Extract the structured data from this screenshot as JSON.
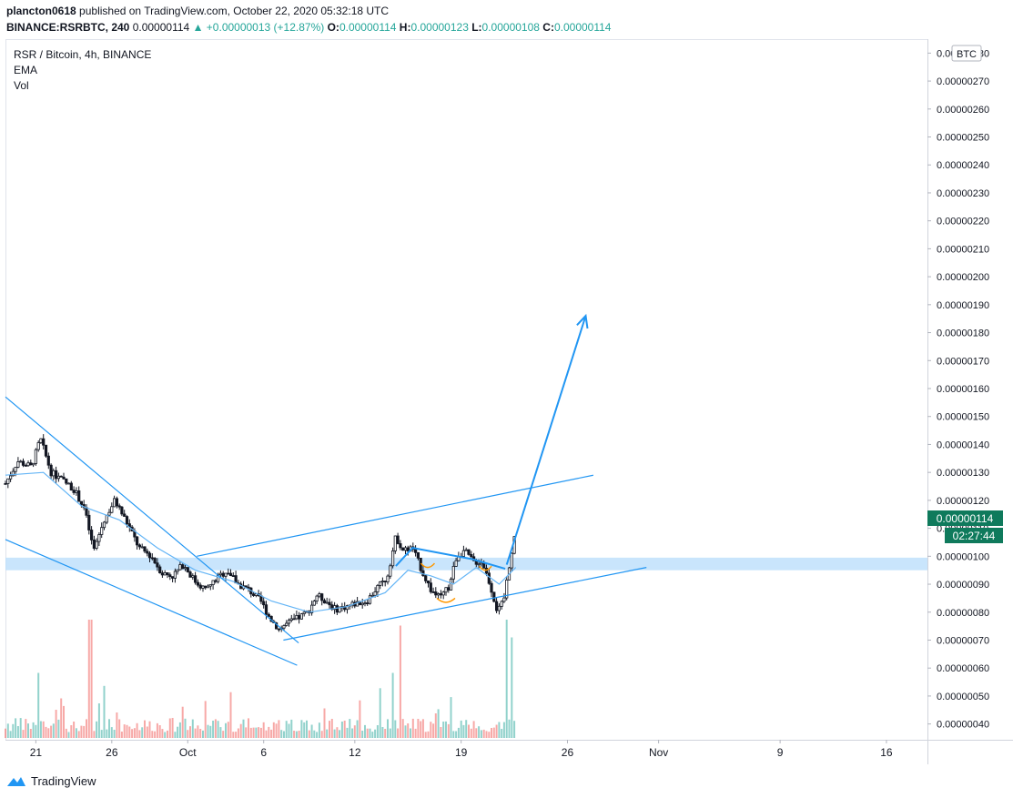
{
  "header": {
    "publisher": "plancton0618",
    "published_text": "published on TradingView.com, October 22, 2020 05:32:18 UTC",
    "symbol": "BINANCE:RSRBTC, 240",
    "last": "0.00000114",
    "change": "+0.00000013 (+12.87%)",
    "o_label": "O:",
    "o_value": "0.00000114",
    "h_label": "H:",
    "h_value": "0.00000123",
    "l_label": "L:",
    "l_value": "0.00000108",
    "c_label": "C:",
    "c_value": "0.00000114"
  },
  "legend": {
    "title": "RSR / Bitcoin, 4h, BINANCE",
    "ema": "EMA",
    "vol": "Vol"
  },
  "currency_badge": "BTC",
  "price_badge": "0.00000114",
  "countdown_badge": "02:27:44",
  "brand": "TradingView",
  "colors": {
    "up": "#26a69a",
    "down": "#ef5350",
    "candle": "#131722",
    "drawing": "#2196f3",
    "zone": "#bbdefb",
    "ema": "#64b5f6",
    "badge": "#0f7a5c"
  },
  "chart_data": {
    "type": "candlestick",
    "title": "RSR / Bitcoin, 4h, BINANCE",
    "y_axis": {
      "ticks": [
        "0.00000040",
        "0.00000050",
        "0.00000060",
        "0.00000070",
        "0.00000080",
        "0.00000090",
        "0.00000100",
        "0.00000110",
        "0.00000120",
        "0.00000130",
        "0.00000140",
        "0.00000150",
        "0.00000160",
        "0.00000170",
        "0.00000180",
        "0.00000190",
        "0.00000200",
        "0.00000210",
        "0.00000220",
        "0.00000230",
        "0.00000240",
        "0.00000250",
        "0.00000260",
        "0.00000270",
        "0.00000280"
      ],
      "range": [
        3.5e-07,
        2.85e-06
      ]
    },
    "x_axis": {
      "ticks": [
        {
          "label": "21",
          "day": 21
        },
        {
          "label": "26",
          "day": 26
        },
        {
          "label": "Oct",
          "day": 31
        },
        {
          "label": "6",
          "day": 36
        },
        {
          "label": "12",
          "day": 42
        },
        {
          "label": "19",
          "day": 49
        },
        {
          "label": "26",
          "day": 56
        },
        {
          "label": "Nov",
          "day": 62
        },
        {
          "label": "9",
          "day": 70
        },
        {
          "label": "16",
          "day": 77
        }
      ],
      "range": [
        19.0,
        79.7
      ]
    },
    "price_path": [
      [
        19.0,
        1.26
      ],
      [
        19.8,
        1.34
      ],
      [
        20.7,
        1.32
      ],
      [
        21.3,
        1.42
      ],
      [
        22.0,
        1.3
      ],
      [
        22.8,
        1.27
      ],
      [
        23.5,
        1.24
      ],
      [
        24.2,
        1.17
      ],
      [
        24.8,
        1.02
      ],
      [
        25.5,
        1.13
      ],
      [
        26.2,
        1.2
      ],
      [
        27.0,
        1.12
      ],
      [
        27.8,
        1.03
      ],
      [
        28.6,
        1.0
      ],
      [
        29.3,
        0.94
      ],
      [
        30.0,
        0.93
      ],
      [
        30.7,
        0.97
      ],
      [
        31.5,
        0.91
      ],
      [
        32.2,
        0.88
      ],
      [
        32.9,
        0.92
      ],
      [
        33.6,
        0.95
      ],
      [
        34.3,
        0.9
      ],
      [
        35.0,
        0.88
      ],
      [
        35.8,
        0.84
      ],
      [
        36.4,
        0.78
      ],
      [
        37.0,
        0.74
      ],
      [
        37.6,
        0.76
      ],
      [
        38.3,
        0.78
      ],
      [
        38.9,
        0.8
      ],
      [
        39.5,
        0.86
      ],
      [
        40.1,
        0.84
      ],
      [
        40.7,
        0.81
      ],
      [
        41.4,
        0.82
      ],
      [
        42.0,
        0.83
      ],
      [
        42.8,
        0.84
      ],
      [
        43.5,
        0.89
      ],
      [
        44.1,
        0.92
      ],
      [
        44.7,
        1.07
      ],
      [
        45.2,
        1.02
      ],
      [
        45.8,
        1.03
      ],
      [
        46.4,
        0.95
      ],
      [
        47.0,
        0.88
      ],
      [
        47.6,
        0.85
      ],
      [
        48.2,
        0.89
      ],
      [
        48.7,
        1.0
      ],
      [
        49.2,
        1.02
      ],
      [
        49.8,
        0.98
      ],
      [
        50.4,
        0.98
      ],
      [
        50.9,
        0.9
      ],
      [
        51.4,
        0.8
      ],
      [
        51.8,
        0.84
      ],
      [
        52.2,
        0.98
      ],
      [
        52.6,
        1.1
      ]
    ],
    "volume_peaks": [
      [
        21.2,
        0.55
      ],
      [
        24.6,
        1.0
      ],
      [
        40.0,
        0.25
      ],
      [
        44.5,
        0.55
      ],
      [
        45.0,
        0.95
      ],
      [
        52.0,
        1.0
      ],
      [
        52.3,
        0.85
      ]
    ],
    "ema_path": [
      [
        19.0,
        1.29
      ],
      [
        21.5,
        1.3
      ],
      [
        24.0,
        1.18
      ],
      [
        26.5,
        1.13
      ],
      [
        29.0,
        1.03
      ],
      [
        31.5,
        0.95
      ],
      [
        34.0,
        0.91
      ],
      [
        36.5,
        0.84
      ],
      [
        39.0,
        0.8
      ],
      [
        41.5,
        0.82
      ],
      [
        44.0,
        0.87
      ],
      [
        45.5,
        0.95
      ],
      [
        47.0,
        0.93
      ],
      [
        48.5,
        0.9
      ],
      [
        50.0,
        0.96
      ],
      [
        51.5,
        0.9
      ],
      [
        52.6,
        0.96
      ]
    ],
    "drawings": {
      "support_zone": [
        0.95,
        0.995
      ],
      "descending_upper": [
        [
          19.0,
          1.57
        ],
        [
          38.3,
          0.69
        ]
      ],
      "descending_lower": [
        [
          19.0,
          1.06
        ],
        [
          38.2,
          0.61
        ]
      ],
      "channel_upper": [
        [
          31.6,
          1.0
        ],
        [
          57.7,
          1.29
        ]
      ],
      "channel_lower": [
        [
          37.3,
          0.7
        ],
        [
          61.2,
          0.96
        ]
      ],
      "zigzag": [
        [
          44.7,
          0.965
        ],
        [
          45.8,
          1.03
        ],
        [
          49.7,
          0.99
        ],
        [
          51.9,
          0.955
        ]
      ],
      "arrow": [
        [
          52.0,
          0.97
        ],
        [
          57.2,
          1.86
        ]
      ]
    }
  }
}
